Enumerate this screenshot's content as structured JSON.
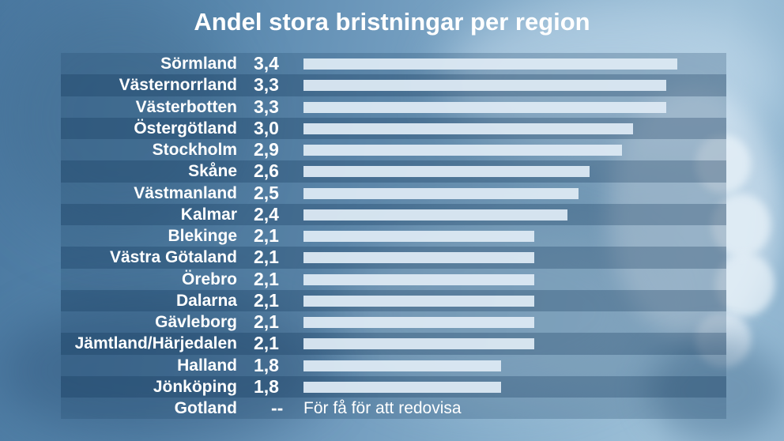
{
  "chart_data": {
    "type": "bar",
    "orientation": "horizontal",
    "title": "Andel stora bristningar per region",
    "categories": [
      "Sörmland",
      "Västernorrland",
      "Västerbotten",
      "Östergötland",
      "Stockholm",
      "Skåne",
      "Västmanland",
      "Kalmar",
      "Blekinge",
      "Västra Götaland",
      "Örebro",
      "Dalarna",
      "Gävleborg",
      "Jämtland/Härjedalen",
      "Halland",
      "Jönköping",
      "Gotland"
    ],
    "values": [
      3.4,
      3.3,
      3.3,
      3.0,
      2.9,
      2.6,
      2.5,
      2.4,
      2.1,
      2.1,
      2.1,
      2.1,
      2.1,
      2.1,
      1.8,
      1.8,
      null
    ],
    "value_labels": [
      "3,4",
      "3,3",
      "3,3",
      "3,0",
      "2,9",
      "2,6",
      "2,5",
      "2,4",
      "2,1",
      "2,1",
      "2,1",
      "2,1",
      "2,1",
      "2,1",
      "1,8",
      "1,8",
      "--"
    ],
    "annotations": [
      {
        "category": "Gotland",
        "text": "För få för att redovisa"
      }
    ],
    "grid": false,
    "legend": "none",
    "bar_color": "#dce9f3"
  }
}
